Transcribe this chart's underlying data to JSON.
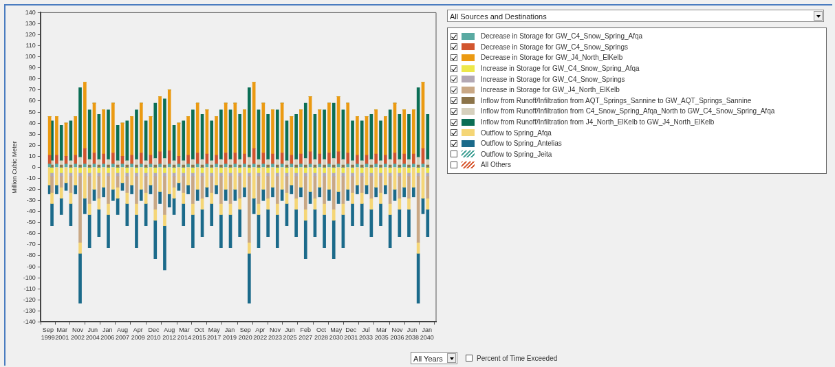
{
  "chart_data": {
    "type": "bar",
    "stacked": true,
    "ylabel": "Million Cubic Meter",
    "legend": "right",
    "annotations": [
      "All Sources and Destinations",
      "All Years",
      "Percent of Time Exceeded"
    ],
    "xlim": [
      "1999-09",
      "2040-03"
    ],
    "xticks": [
      {
        "value": "1999-09",
        "label": "Sep 1999"
      },
      {
        "value": "2001-03",
        "label": "Mar 2001"
      },
      {
        "value": "2002-11",
        "label": "Nov 2002"
      },
      {
        "value": "2004-06",
        "label": "Jun 2004"
      },
      {
        "value": "2006-01",
        "label": "Jan 2006"
      },
      {
        "value": "2007-08",
        "label": "Aug 2007"
      },
      {
        "value": "2009-04",
        "label": "Apr 2009"
      },
      {
        "value": "2010-12",
        "label": "Dec 2010"
      },
      {
        "value": "2012-08",
        "label": "Aug 2012"
      },
      {
        "value": "2014-03",
        "label": "Mar 2014"
      },
      {
        "value": "2015-10",
        "label": "Oct 2015"
      },
      {
        "value": "2017-05",
        "label": "May 2017"
      },
      {
        "value": "2019-01",
        "label": "Jan 2019"
      },
      {
        "value": "2020-09",
        "label": "Sep 2020"
      },
      {
        "value": "2022-04",
        "label": "Apr 2022"
      },
      {
        "value": "2023-11",
        "label": "Nov 2023"
      },
      {
        "value": "2025-06",
        "label": "Jun 2025"
      },
      {
        "value": "2027-02",
        "label": "Feb 2027"
      },
      {
        "value": "2028-10",
        "label": "Oct 2028"
      },
      {
        "value": "2030-05",
        "label": "May 2030"
      },
      {
        "value": "2031-12",
        "label": "Dec 2031"
      },
      {
        "value": "2033-07",
        "label": "Jul 2033"
      },
      {
        "value": "2035-03",
        "label": "Mar 2035"
      },
      {
        "value": "2036-11",
        "label": "Nov 2036"
      },
      {
        "value": "2038-06",
        "label": "Jun 2038"
      },
      {
        "value": "2040-01",
        "label": "Jan 2040"
      }
    ],
    "ylim": [
      -140,
      140
    ],
    "yticks": [
      -140,
      -130,
      -120,
      -110,
      -100,
      -90,
      -80,
      -70,
      -60,
      -50,
      -40,
      -30,
      -20,
      -10,
      0,
      10,
      20,
      30,
      40,
      50,
      60,
      70,
      80,
      90,
      100,
      110,
      120,
      130,
      140
    ],
    "x": [
      "1999-11",
      "2000-02",
      "2000-08",
      "2001-02",
      "2001-08",
      "2002-02",
      "2002-08",
      "2003-02",
      "2003-08",
      "2004-02",
      "2004-08",
      "2005-02",
      "2005-08",
      "2006-02",
      "2006-08",
      "2007-02",
      "2007-08",
      "2008-02",
      "2008-08",
      "2009-02",
      "2009-08",
      "2010-02",
      "2010-08",
      "2011-02",
      "2011-08",
      "2012-02",
      "2012-08",
      "2013-02",
      "2013-08",
      "2014-02",
      "2014-08",
      "2015-02",
      "2015-08",
      "2016-02",
      "2016-08",
      "2017-02",
      "2017-08",
      "2018-02",
      "2018-08",
      "2019-02",
      "2019-08",
      "2020-02",
      "2020-08",
      "2021-02",
      "2021-08",
      "2022-02",
      "2022-08",
      "2023-02",
      "2023-08",
      "2024-02",
      "2024-08",
      "2025-02",
      "2025-08",
      "2026-02",
      "2026-08",
      "2027-02",
      "2027-08",
      "2028-02",
      "2028-08",
      "2029-02",
      "2029-08",
      "2030-02",
      "2030-08",
      "2031-02",
      "2031-08",
      "2032-02",
      "2032-08",
      "2033-02",
      "2033-08",
      "2034-02",
      "2034-08",
      "2035-02",
      "2035-08",
      "2036-02",
      "2036-08",
      "2037-02",
      "2037-08",
      "2038-02",
      "2038-08",
      "2039-02",
      "2039-08",
      "2040-02"
    ],
    "series": [
      {
        "name": "Decrease in Storage for GW_C4_Snow_Spring_Afqa",
        "color": "#5aaaa2",
        "values": [
          3,
          0,
          3,
          0,
          3,
          0,
          3,
          0,
          3,
          0,
          3,
          0,
          3,
          0,
          3,
          0,
          3,
          0,
          3,
          0,
          3,
          0,
          3,
          0,
          3,
          0,
          3,
          0,
          3,
          0,
          3,
          0,
          3,
          0,
          3,
          0,
          3,
          0,
          3,
          0,
          3,
          0,
          3,
          0,
          3,
          0,
          3,
          0,
          3,
          0,
          3,
          0,
          3,
          0,
          3,
          0,
          3,
          0,
          3,
          0,
          3,
          0,
          3,
          0,
          3,
          0,
          3,
          0,
          3,
          0,
          3,
          0,
          3,
          0,
          3,
          0,
          3,
          0,
          3,
          0,
          3,
          0
        ]
      },
      {
        "name": "Decrease in Storage for GW_C4_Snow_Springs",
        "color": "#d2552e",
        "values": [
          8,
          0,
          8,
          0,
          7,
          0,
          8,
          0,
          14,
          0,
          10,
          0,
          9,
          0,
          10,
          0,
          7,
          0,
          8,
          0,
          10,
          0,
          8,
          0,
          11,
          0,
          12,
          0,
          7,
          0,
          8,
          0,
          10,
          0,
          9,
          0,
          8,
          0,
          10,
          0,
          10,
          0,
          9,
          0,
          14,
          0,
          10,
          0,
          9,
          0,
          10,
          0,
          8,
          0,
          9,
          0,
          11,
          0,
          9,
          0,
          10,
          0,
          11,
          0,
          10,
          0,
          8,
          0,
          8,
          0,
          9,
          0,
          8,
          0,
          10,
          0,
          9,
          0,
          9,
          0,
          14,
          0
        ]
      },
      {
        "name": "Decrease in Storage for GW_J4_North_ElKelb",
        "color": "#eb9a12",
        "values": [
          35,
          0,
          35,
          0,
          30,
          0,
          35,
          0,
          60,
          0,
          45,
          0,
          40,
          0,
          45,
          0,
          30,
          0,
          35,
          0,
          45,
          0,
          35,
          0,
          50,
          0,
          55,
          0,
          30,
          0,
          35,
          0,
          45,
          0,
          40,
          0,
          35,
          0,
          45,
          0,
          45,
          0,
          40,
          0,
          60,
          0,
          45,
          0,
          40,
          0,
          45,
          0,
          35,
          0,
          40,
          0,
          50,
          0,
          40,
          0,
          45,
          0,
          50,
          0,
          45,
          0,
          35,
          0,
          35,
          0,
          40,
          0,
          35,
          0,
          45,
          0,
          40,
          0,
          40,
          0,
          60,
          0
        ]
      },
      {
        "name": "Increase in Storage for GW_C4_Snow_Spring_Afqa",
        "color": "#ede84a",
        "values": [
          0,
          -5,
          0,
          -5,
          0,
          -5,
          0,
          -5,
          0,
          -5,
          0,
          -5,
          0,
          -5,
          0,
          -5,
          0,
          -5,
          0,
          -5,
          0,
          -5,
          0,
          -5,
          0,
          -5,
          0,
          -5,
          0,
          -5,
          0,
          -5,
          0,
          -5,
          0,
          -5,
          0,
          -5,
          0,
          -5,
          0,
          -5,
          0,
          -5,
          0,
          -5,
          0,
          -5,
          0,
          -5,
          0,
          -5,
          0,
          -5,
          0,
          -5,
          0,
          -5,
          0,
          -5,
          0,
          -5,
          0,
          -5,
          0,
          -5,
          0,
          -5,
          0,
          -5,
          0,
          -5,
          0,
          -5,
          0,
          -5,
          0,
          -5,
          0,
          -5,
          0,
          -5
        ]
      },
      {
        "name": "Increase in Storage for GW_C4_Snow_Springs",
        "color": "#b3a8b4",
        "values": [
          0,
          -3,
          0,
          -3,
          0,
          -3,
          0,
          -3,
          0,
          -3,
          0,
          -3,
          0,
          -3,
          0,
          -3,
          0,
          -3,
          0,
          -3,
          0,
          -3,
          0,
          -3,
          0,
          -3,
          0,
          -3,
          0,
          -3,
          0,
          -3,
          0,
          -3,
          0,
          -3,
          0,
          -3,
          0,
          -3,
          0,
          -3,
          0,
          -3,
          0,
          -3,
          0,
          -3,
          0,
          -3,
          0,
          -3,
          0,
          -3,
          0,
          -3,
          0,
          -3,
          0,
          -3,
          0,
          -3,
          0,
          -3,
          0,
          -3,
          0,
          -3,
          0,
          -3,
          0,
          -3,
          0,
          -3,
          0,
          -3,
          0,
          -3,
          0,
          -3,
          0,
          -3
        ]
      },
      {
        "name": "Increase in Storage for GW_J4_North_ElKelb",
        "color": "#c9a885",
        "values": [
          0,
          -15,
          0,
          -10,
          0,
          -15,
          0,
          -60,
          0,
          -25,
          0,
          -20,
          0,
          -25,
          0,
          -10,
          0,
          -15,
          0,
          -25,
          0,
          -15,
          0,
          -30,
          0,
          -35,
          0,
          -10,
          0,
          -15,
          0,
          -25,
          0,
          -20,
          0,
          -15,
          0,
          -25,
          0,
          -25,
          0,
          -20,
          0,
          -60,
          0,
          -25,
          0,
          -20,
          0,
          -25,
          0,
          -15,
          0,
          -20,
          0,
          -30,
          0,
          -20,
          0,
          -25,
          0,
          -30,
          0,
          -25,
          0,
          -15,
          0,
          -15,
          0,
          -20,
          0,
          -15,
          0,
          -25,
          0,
          -20,
          0,
          -20,
          0,
          -60,
          0,
          -20
        ]
      },
      {
        "name": "Inflow from Runoff/Infiltration from AQT_Springs_Sannine to GW_AQT_Springs_Sannine",
        "color": "#8c7449",
        "values": [
          0,
          2,
          0,
          2,
          0,
          2,
          0,
          2,
          0,
          2,
          0,
          2,
          0,
          2,
          0,
          2,
          0,
          2,
          0,
          2,
          0,
          2,
          0,
          2,
          0,
          2,
          0,
          2,
          0,
          2,
          0,
          2,
          0,
          2,
          0,
          2,
          0,
          2,
          0,
          2,
          0,
          2,
          0,
          2,
          0,
          2,
          0,
          2,
          0,
          2,
          0,
          2,
          0,
          2,
          0,
          2,
          0,
          2,
          0,
          2,
          0,
          2,
          0,
          2,
          0,
          2,
          0,
          2,
          0,
          2,
          0,
          2,
          0,
          2,
          0,
          2,
          0,
          2,
          0,
          2,
          0,
          2
        ]
      },
      {
        "name": "Inflow from Runoff/Infiltration from C4_Snow_Spring_Afqa_North to GW_C4_Snow_Spring_Afqa",
        "color": "#d6d0bd",
        "values": [
          0,
          4,
          0,
          4,
          0,
          4,
          0,
          7,
          0,
          5,
          0,
          5,
          0,
          5,
          0,
          4,
          0,
          4,
          0,
          5,
          0,
          4,
          0,
          6,
          0,
          6,
          0,
          4,
          0,
          4,
          0,
          5,
          0,
          5,
          0,
          4,
          0,
          5,
          0,
          5,
          0,
          5,
          0,
          7,
          0,
          5,
          0,
          5,
          0,
          5,
          0,
          4,
          0,
          5,
          0,
          6,
          0,
          5,
          0,
          5,
          0,
          6,
          0,
          5,
          0,
          4,
          0,
          4,
          0,
          5,
          0,
          4,
          0,
          5,
          0,
          5,
          0,
          5,
          0,
          7,
          0,
          5
        ]
      },
      {
        "name": "Inflow from Runoff/Infiltration from J4_North_ElKelb to GW_J4_North_ElKelb",
        "color": "#0b6e55",
        "values": [
          0,
          36,
          0,
          32,
          0,
          36,
          0,
          63,
          0,
          45,
          0,
          41,
          0,
          45,
          0,
          32,
          0,
          36,
          0,
          45,
          0,
          36,
          0,
          50,
          0,
          54,
          0,
          32,
          0,
          36,
          0,
          45,
          0,
          41,
          0,
          36,
          0,
          45,
          0,
          45,
          0,
          41,
          0,
          63,
          0,
          45,
          0,
          41,
          0,
          45,
          0,
          36,
          0,
          41,
          0,
          50,
          0,
          41,
          0,
          45,
          0,
          50,
          0,
          45,
          0,
          36,
          0,
          36,
          0,
          41,
          0,
          36,
          0,
          45,
          0,
          41,
          0,
          41,
          0,
          63,
          0,
          41
        ]
      },
      {
        "name": "Outflow to Spring_Afqa",
        "color": "#f5d676",
        "values": [
          -16,
          -10,
          -16,
          -10,
          -14,
          -10,
          -16,
          -10,
          -28,
          -10,
          -20,
          -10,
          -18,
          -10,
          -20,
          -10,
          -14,
          -10,
          -16,
          -10,
          -20,
          -10,
          -16,
          -10,
          -22,
          -10,
          -24,
          -10,
          -14,
          -10,
          -16,
          -10,
          -20,
          -10,
          -18,
          -10,
          -16,
          -10,
          -20,
          -10,
          -20,
          -10,
          -18,
          -10,
          -28,
          -10,
          -20,
          -10,
          -18,
          -10,
          -20,
          -10,
          -16,
          -10,
          -18,
          -10,
          -22,
          -10,
          -18,
          -10,
          -20,
          -10,
          -22,
          -10,
          -20,
          -10,
          -16,
          -10,
          -16,
          -10,
          -18,
          -10,
          -16,
          -10,
          -20,
          -10,
          -18,
          -10,
          -18,
          -10,
          -28,
          -10
        ]
      },
      {
        "name": "Outflow to Spring_Antelias",
        "color": "#1b6a8a",
        "values": [
          -8,
          -20,
          -8,
          -15,
          -7,
          -20,
          -8,
          -45,
          -14,
          -30,
          -10,
          -25,
          -9,
          -30,
          -10,
          -15,
          -7,
          -20,
          -8,
          -30,
          -10,
          -20,
          -8,
          -35,
          -11,
          -40,
          -12,
          -15,
          -7,
          -20,
          -8,
          -30,
          -10,
          -25,
          -9,
          -20,
          -8,
          -30,
          -10,
          -30,
          -10,
          -25,
          -9,
          -45,
          -14,
          -30,
          -10,
          -25,
          -9,
          -30,
          -10,
          -20,
          -8,
          -25,
          -9,
          -35,
          -11,
          -25,
          -9,
          -30,
          -10,
          -35,
          -11,
          -30,
          -10,
          -20,
          -8,
          -20,
          -8,
          -25,
          -9,
          -20,
          -8,
          -30,
          -10,
          -25,
          -9,
          -25,
          -9,
          -45,
          -14,
          -25
        ]
      },
      {
        "name": "Outflow to Spring_Jeita",
        "color": "#4aa59a",
        "values": [
          null,
          null,
          null,
          null,
          null,
          null,
          null,
          null,
          null,
          null,
          null,
          null,
          null,
          null,
          null,
          null,
          null,
          null,
          null,
          null,
          null,
          null,
          null,
          null,
          null,
          null,
          null,
          null,
          null,
          null,
          null,
          null,
          null,
          null,
          null,
          null,
          null,
          null,
          null,
          null,
          null,
          null,
          null,
          null,
          null,
          null,
          null,
          null,
          null,
          null,
          null,
          null,
          null,
          null,
          null,
          null,
          null,
          null,
          null,
          null,
          null,
          null,
          null,
          null,
          null,
          null,
          null,
          null,
          null,
          null,
          null,
          null,
          null,
          null,
          null,
          null,
          null,
          null,
          null,
          null,
          null,
          null
        ]
      },
      {
        "name": "All Others",
        "color": "#d9603a",
        "values": [
          null,
          null,
          null,
          null,
          null,
          null,
          null,
          null,
          null,
          null,
          null,
          null,
          null,
          null,
          null,
          null,
          null,
          null,
          null,
          null,
          null,
          null,
          null,
          null,
          null,
          null,
          null,
          null,
          null,
          null,
          null,
          null,
          null,
          null,
          null,
          null,
          null,
          null,
          null,
          null,
          null,
          null,
          null,
          null,
          null,
          null,
          null,
          null,
          null,
          null,
          null,
          null,
          null,
          null,
          null,
          null,
          null,
          null,
          null,
          null,
          null,
          null,
          null,
          null,
          null,
          null,
          null,
          null,
          null,
          null,
          null,
          null,
          null,
          null,
          null,
          null,
          null,
          null,
          null,
          null,
          null,
          null
        ]
      }
    ]
  }
}
